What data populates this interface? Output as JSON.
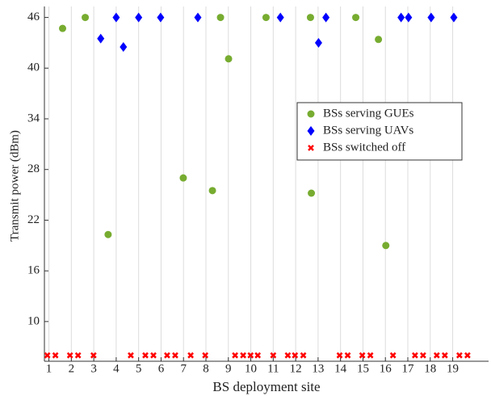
{
  "chart_data": {
    "type": "scatter",
    "xlabel": "BS deployment site",
    "ylabel": "Transmit power (dBm)",
    "xlim": [
      0.8,
      20.6
    ],
    "ylim": [
      5.3,
      47.3
    ],
    "xticks": [
      1,
      2,
      3,
      4,
      5,
      6,
      7,
      8,
      9,
      10,
      11,
      12,
      13,
      14,
      15,
      16,
      17,
      18,
      19
    ],
    "yticks": [
      10,
      16,
      22,
      28,
      34,
      40,
      46
    ],
    "grid": "x",
    "legend": "center right",
    "series": [
      {
        "name": "BSs serving GUEs",
        "color": "#77ac30",
        "marker": "circle",
        "x": [
          1.61,
          2.62,
          3.64,
          6.99,
          8.29,
          8.65,
          9.01,
          10.68,
          12.66,
          12.7,
          14.68,
          15.69,
          16.02
        ],
        "values": [
          44.7,
          46,
          20.3,
          27,
          25.5,
          46,
          41.1,
          46,
          46,
          25.2,
          46,
          43.4,
          19
        ]
      },
      {
        "name": "BSs serving UAVs",
        "color": "#0000ff",
        "marker": "diamond",
        "x": [
          3.31,
          4.0,
          4.32,
          5.0,
          5.98,
          7.64,
          11.32,
          13.02,
          13.35,
          16.7,
          17.03,
          18.04,
          19.05
        ],
        "values": [
          43.5,
          46,
          42.5,
          46,
          46,
          46,
          46,
          43,
          46,
          46,
          46,
          46,
          46
        ]
      },
      {
        "name": "BSs switched off",
        "color": "#ff0000",
        "marker": "x",
        "x": [
          0.93,
          1.29,
          1.94,
          2.3,
          2.99,
          4.65,
          5.3,
          5.66,
          6.27,
          6.63,
          7.32,
          7.97,
          9.3,
          9.66,
          9.99,
          10.31,
          11.0,
          11.65,
          11.97,
          12.34,
          13.96,
          14.32,
          14.97,
          15.33,
          16.34,
          17.32,
          17.68,
          18.29,
          18.65,
          19.3,
          19.66
        ],
        "values": [
          6,
          6,
          6,
          6,
          6,
          6,
          6,
          6,
          6,
          6,
          6,
          6,
          6,
          6,
          6,
          6,
          6,
          6,
          6,
          6,
          6,
          6,
          6,
          6,
          6,
          6,
          6,
          6,
          6,
          6,
          6
        ]
      }
    ]
  }
}
